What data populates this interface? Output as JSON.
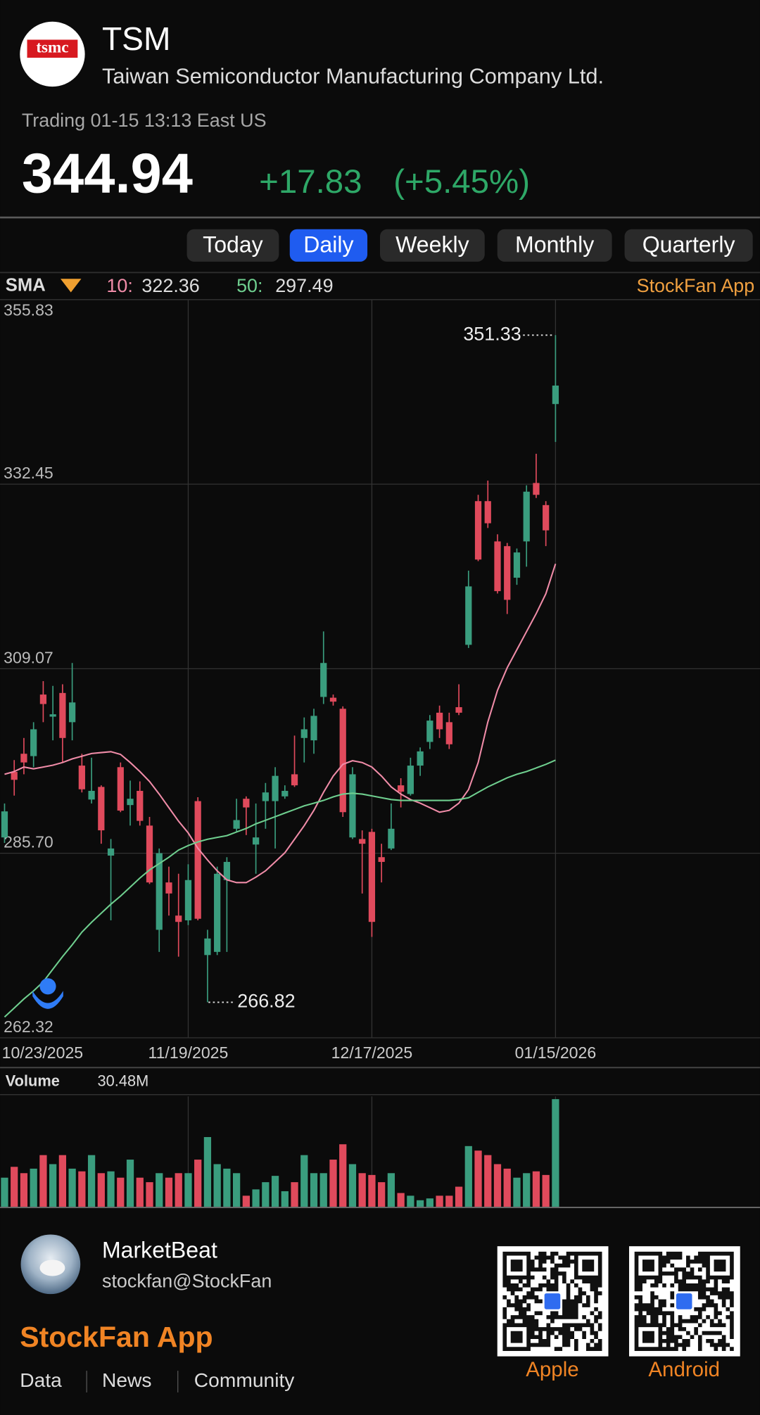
{
  "header": {
    "logo_text": "tsmc",
    "ticker": "TSM",
    "company": "Taiwan Semiconductor Manufacturing Company Ltd.",
    "status": "Trading 01-15 13:13 East US",
    "change": "+17.83",
    "change_pct": "(+5.45%)"
  },
  "tabs": {
    "items": [
      "Today",
      "Daily",
      "Weekly",
      "Monthly",
      "Quarterly"
    ],
    "active": 1
  },
  "indicator": {
    "label": "SMA",
    "watermark": "StockFan App"
  },
  "chart_data": {
    "type": "candlestick",
    "categories": [
      "10/23/2025",
      null,
      null,
      null,
      null,
      null,
      null,
      null,
      null,
      null,
      null,
      null,
      null,
      null,
      null,
      null,
      null,
      null,
      null,
      "11/19/2025",
      null,
      null,
      null,
      null,
      null,
      null,
      null,
      null,
      null,
      null,
      null,
      null,
      null,
      null,
      null,
      null,
      null,
      null,
      "12/17/2025",
      null,
      null,
      null,
      null,
      null,
      null,
      null,
      null,
      null,
      null,
      null,
      null,
      null,
      null,
      null,
      null,
      null,
      null,
      "01/15/2026"
    ],
    "open": [
      287.7,
      296,
      298.3,
      298,
      305.8,
      303,
      306,
      302.3,
      296.8,
      292.5,
      294.1,
      285.4,
      296.6,
      291.8,
      293.6,
      289.2,
      276,
      282,
      277.8,
      277.2,
      292.3,
      272.8,
      273.2,
      282.3,
      288.8,
      292.6,
      286.8,
      292.3,
      292.3,
      292.9,
      295.7,
      300.3,
      300,
      305.5,
      305.4,
      304,
      287.7,
      287.5,
      288.4,
      285.2,
      286.3,
      294.3,
      293.2,
      296.8,
      299.8,
      303.5,
      302.3,
      304.2,
      312.1,
      330.3,
      330.3,
      325.2,
      324.6,
      320.6,
      325.2,
      332.6,
      329.8,
      342.6
    ],
    "high": [
      292,
      297.5,
      300.3,
      302.3,
      307.5,
      306.9,
      307.1,
      309.8,
      298.3,
      297.8,
      294.3,
      287.5,
      297.2,
      294.9,
      294.8,
      290.3,
      286.3,
      284,
      283.1,
      284.3,
      292.8,
      276,
      284,
      285.2,
      292.6,
      292.9,
      292,
      294.6,
      296.6,
      294.3,
      300.6,
      302.9,
      304,
      313.8,
      305.8,
      304.3,
      296.6,
      288.6,
      288.8,
      286.9,
      292,
      295.2,
      297.8,
      299.1,
      303.2,
      304.4,
      303.5,
      307.1,
      321.5,
      331.1,
      332.9,
      326.1,
      325,
      324.3,
      332.3,
      336.3,
      330.3,
      351.33
    ],
    "low": [
      287,
      293,
      295.7,
      296.6,
      302.3,
      300,
      297.2,
      300,
      293.4,
      292,
      286.9,
      277.2,
      290.9,
      289.2,
      289.2,
      281.8,
      273.2,
      277.8,
      272.6,
      276.6,
      277.2,
      266.82,
      272.8,
      273.2,
      288.4,
      288,
      283.1,
      288.8,
      286.3,
      292.6,
      294.1,
      297.2,
      298.3,
      304.6,
      304.4,
      290.3,
      287.5,
      280.6,
      275.1,
      282,
      286.1,
      291.5,
      293,
      295.5,
      298.9,
      300.3,
      298.9,
      303.2,
      311.7,
      322.7,
      326.9,
      318.6,
      316,
      319.7,
      322,
      330.7,
      324.6,
      337.8
    ],
    "close": [
      291,
      295,
      297.2,
      301.4,
      304.6,
      303.3,
      300.3,
      304.8,
      293.8,
      293.6,
      288.6,
      286.3,
      291.1,
      292.6,
      289.8,
      282,
      285.7,
      280.6,
      277,
      282.3,
      277.4,
      274.9,
      283.1,
      284.6,
      289.9,
      291.5,
      287.7,
      293.4,
      295.5,
      293.6,
      294.3,
      301.4,
      303.1,
      309.8,
      304.9,
      290.9,
      295.7,
      286.9,
      277,
      284.6,
      288.8,
      293.5,
      296.8,
      298.6,
      302.5,
      301.4,
      299.5,
      303.5,
      319.5,
      322.9,
      327.5,
      318.9,
      317.8,
      323.8,
      331.5,
      331.1,
      326.6,
      344.94
    ],
    "up_color": "#3a9d7e",
    "down_color": "#e04a5c",
    "sma": [
      {
        "name": "10:",
        "color": "#f08ca8",
        "values": [
          295.7,
          296.05,
          296.62,
          296.39,
          296.62,
          296.85,
          297.19,
          297.65,
          297.99,
          298.33,
          298.45,
          298.56,
          298.22,
          297.19,
          296.05,
          294.79,
          293.19,
          291.47,
          289.76,
          288.27,
          286.33,
          284.84,
          283.47,
          282.33,
          281.98,
          281.98,
          282.67,
          283.47,
          284.61,
          285.76,
          287.47,
          289.19,
          291.13,
          293.42,
          295.47,
          296.96,
          297.42,
          297.19,
          296.62,
          295.47,
          294.1,
          293.19,
          292.5,
          292.04,
          291.47,
          290.9,
          291.13,
          292.04,
          293.76,
          297.19,
          302.33,
          306.34,
          309.19,
          311.48,
          313.77,
          316.05,
          318.57,
          322.36
        ]
      },
      {
        "name": "50:",
        "color": "#6fcf8f",
        "values": [
          264.95,
          266.09,
          267.24,
          268.26,
          269.41,
          271.01,
          272.61,
          274.1,
          275.7,
          276.95,
          278.1,
          279.24,
          280.27,
          281.41,
          282.56,
          283.58,
          284.39,
          285.19,
          286.1,
          286.67,
          287.13,
          287.47,
          287.7,
          287.93,
          288.39,
          288.84,
          289.42,
          289.87,
          290.33,
          290.79,
          291.24,
          291.7,
          292.04,
          292.39,
          292.84,
          293.19,
          293.3,
          293.19,
          292.96,
          292.73,
          292.5,
          292.39,
          292.39,
          292.39,
          292.39,
          292.39,
          292.39,
          292.5,
          292.73,
          293.42,
          294.1,
          294.67,
          295.25,
          295.7,
          296.05,
          296.5,
          296.96,
          297.49
        ]
      }
    ],
    "ylim": [
      262.32,
      355.83
    ],
    "yticks": [
      262.32,
      {
        "value": 285.7,
        "label": "285.70"
      },
      309.07,
      332.45,
      355.83
    ],
    "grid": true,
    "volume": {
      "title": "Volume",
      "readout": "30.48M",
      "ylim": [
        0,
        30.48
      ],
      "values": [
        8.38,
        11.43,
        9.65,
        10.92,
        14.73,
        12.19,
        14.73,
        10.92,
        10.16,
        14.73,
        9.65,
        10.16,
        8.38,
        13.46,
        8.38,
        7.11,
        9.65,
        8.38,
        9.65,
        9.65,
        13.46,
        19.81,
        12.19,
        10.92,
        9.65,
        3.3,
        5.08,
        7.11,
        8.89,
        4.57,
        7.11,
        14.73,
        9.65,
        9.65,
        13.46,
        17.78,
        12.19,
        9.65,
        9.14,
        7.11,
        9.65,
        4.06,
        3.3,
        2.03,
        2.54,
        3.3,
        3.3,
        5.84,
        17.27,
        16,
        14.73,
        12.19,
        10.92,
        8.38,
        9.65,
        10.16,
        9.14,
        30.48
      ]
    }
  },
  "footer": {
    "name": "MarketBeat",
    "handle": "stockfan@StockFan",
    "app": "StockFan App",
    "links": [
      "Data",
      "News",
      "Community"
    ],
    "qr_labels": [
      "Apple",
      "Android"
    ]
  }
}
